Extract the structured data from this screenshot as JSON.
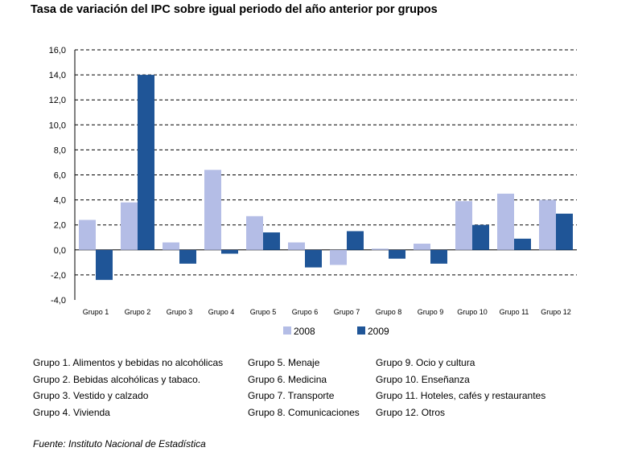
{
  "title": "Tasa de variación del IPC sobre igual periodo del año anterior por grupos",
  "source": "Fuente: Instituto Nacional de Estadística",
  "colors": {
    "series_2008": "#b4bde6",
    "series_2009": "#1f5597",
    "grid": "#000000"
  },
  "chart_data": {
    "type": "bar",
    "title": "Tasa de variación del IPC sobre igual periodo del año anterior por grupos",
    "xlabel": "",
    "ylabel": "",
    "ylim": [
      -4.0,
      16.0
    ],
    "yticks": [
      "16,0",
      "14,0",
      "12,0",
      "10,0",
      "8,0",
      "6,0",
      "4,0",
      "2,0",
      "0,0",
      "-2,0",
      "-4,0"
    ],
    "ytick_values": [
      16,
      14,
      12,
      10,
      8,
      6,
      4,
      2,
      0,
      -2,
      -4
    ],
    "grid": "dashed horizontal",
    "legend_position": "bottom",
    "categories": [
      "Grupo 1",
      "Grupo 2",
      "Grupo 3",
      "Grupo 4",
      "Grupo 5",
      "Grupo 6",
      "Grupo 7",
      "Grupo 8",
      "Grupo 9",
      "Grupo 10",
      "Grupo 11",
      "Grupo 12"
    ],
    "series": [
      {
        "name": "2008",
        "values": [
          2.4,
          3.8,
          0.6,
          6.4,
          2.7,
          0.6,
          -1.2,
          0.1,
          0.5,
          3.9,
          4.5,
          4.0
        ]
      },
      {
        "name": "2009",
        "values": [
          -2.4,
          14.0,
          -1.1,
          -0.3,
          1.4,
          -1.4,
          1.5,
          -0.7,
          -1.1,
          2.0,
          0.9,
          2.9
        ]
      }
    ]
  },
  "group_notes": [
    [
      "Grupo 1. Alimentos y bebidas no alcohólicas",
      "Grupo 2. Bebidas alcohólicas y  tabaco.",
      "Grupo 3. Vestido y calzado",
      "Grupo 4. Vivienda"
    ],
    [
      "Grupo 5. Menaje",
      "Grupo 6. Medicina",
      "Grupo 7. Transporte",
      "Grupo 8. Comunicaciones"
    ],
    [
      "Grupo 9. Ocio y cultura",
      "Grupo 10. Enseñanza",
      "Grupo 11. Hoteles, cafés y restaurantes",
      "Grupo 12. Otros"
    ]
  ]
}
